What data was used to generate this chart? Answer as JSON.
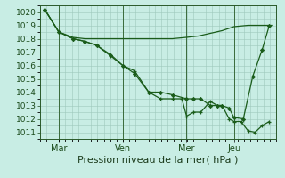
{
  "background_color": "#c8ede4",
  "grid_color": "#9dc8bc",
  "line_color": "#1a5c1a",
  "marker_color": "#1a5c1a",
  "xlabel": "Pression niveau de la mer( hPa )",
  "ylim": [
    1010.5,
    1020.5
  ],
  "yticks": [
    1011,
    1012,
    1013,
    1014,
    1015,
    1016,
    1017,
    1018,
    1019,
    1020
  ],
  "xtick_labels": [
    "Mar",
    "Ven",
    "Mer",
    "Jeu"
  ],
  "xtick_positions": [
    0.08,
    0.35,
    0.62,
    0.82
  ],
  "line1_x": [
    0.02,
    0.08,
    0.14,
    0.19,
    0.24,
    0.3,
    0.35,
    0.4,
    0.46,
    0.51,
    0.56,
    0.62,
    0.67,
    0.72,
    0.77,
    0.82,
    0.88,
    0.93,
    0.98
  ],
  "line1_y": [
    1020.2,
    1018.5,
    1018.1,
    1018.0,
    1018.0,
    1018.0,
    1018.0,
    1018.0,
    1018.0,
    1018.0,
    1018.0,
    1018.1,
    1018.2,
    1018.4,
    1018.6,
    1018.9,
    1019.0,
    1019.0,
    1019.0
  ],
  "line2_x": [
    0.02,
    0.08,
    0.14,
    0.19,
    0.24,
    0.3,
    0.35,
    0.4,
    0.46,
    0.51,
    0.56,
    0.6,
    0.62,
    0.65,
    0.68,
    0.72,
    0.75,
    0.77,
    0.8,
    0.82,
    0.85,
    0.88,
    0.91,
    0.94,
    0.97
  ],
  "line2_y": [
    1020.2,
    1018.5,
    1018.0,
    1017.8,
    1017.5,
    1016.7,
    1016.0,
    1015.6,
    1014.0,
    1013.5,
    1013.5,
    1013.5,
    1012.2,
    1012.5,
    1012.5,
    1013.3,
    1013.0,
    1013.0,
    1012.0,
    1011.8,
    1011.8,
    1011.1,
    1011.0,
    1011.5,
    1011.8
  ],
  "line3_x": [
    0.02,
    0.08,
    0.14,
    0.19,
    0.24,
    0.3,
    0.35,
    0.4,
    0.46,
    0.51,
    0.56,
    0.62,
    0.65,
    0.68,
    0.72,
    0.75,
    0.77,
    0.8,
    0.82,
    0.86,
    0.9,
    0.94,
    0.97
  ],
  "line3_y": [
    1020.2,
    1018.5,
    1018.0,
    1017.8,
    1017.5,
    1016.8,
    1016.0,
    1015.4,
    1014.0,
    1014.0,
    1013.8,
    1013.5,
    1013.5,
    1013.5,
    1013.0,
    1013.0,
    1013.0,
    1012.8,
    1012.1,
    1012.0,
    1015.2,
    1017.2,
    1019.0
  ]
}
